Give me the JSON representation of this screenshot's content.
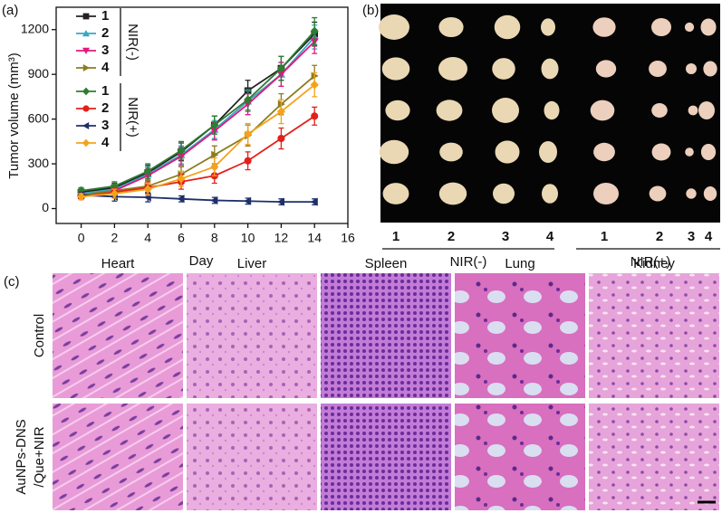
{
  "chart_data": {
    "type": "line",
    "panel_label": "(a)",
    "x_label": "Day",
    "y_label": "Tumor volume (mm³)",
    "x": [
      0,
      2,
      4,
      6,
      8,
      10,
      12,
      14
    ],
    "xlim": [
      -1.5,
      16
    ],
    "xticks": [
      0,
      2,
      4,
      6,
      8,
      10,
      12,
      14,
      16
    ],
    "ylim": [
      -100,
      1350
    ],
    "yticks": [
      0,
      300,
      600,
      900,
      1200
    ],
    "legend_groups": [
      {
        "label": "NIR(-)",
        "series": [
          0,
          1,
          2,
          3
        ]
      },
      {
        "label": "NIR(+)",
        "series": [
          4,
          5,
          6,
          7
        ]
      }
    ],
    "series": [
      {
        "name": "1",
        "color": "#222222",
        "marker": "square",
        "values": [
          110,
          140,
          240,
          380,
          560,
          790,
          940,
          1170
        ],
        "errors": [
          20,
          30,
          50,
          60,
          60,
          70,
          80,
          80
        ]
      },
      {
        "name": "2",
        "color": "#33a9c4",
        "marker": "triangle-up",
        "values": [
          100,
          130,
          230,
          360,
          530,
          720,
          900,
          1150
        ],
        "errors": [
          20,
          30,
          50,
          60,
          60,
          70,
          80,
          80
        ]
      },
      {
        "name": "3",
        "color": "#e0197d",
        "marker": "triangle-down",
        "values": [
          90,
          120,
          220,
          350,
          520,
          700,
          900,
          1120
        ],
        "errors": [
          20,
          30,
          50,
          60,
          60,
          70,
          80,
          80
        ]
      },
      {
        "name": "4",
        "color": "#8b7d1e",
        "marker": "triangle-right",
        "values": [
          90,
          120,
          150,
          230,
          360,
          490,
          700,
          890
        ],
        "errors": [
          20,
          30,
          40,
          50,
          60,
          70,
          70,
          70
        ]
      },
      {
        "name": "1",
        "color": "#2e7d32",
        "marker": "diamond",
        "values": [
          120,
          150,
          250,
          390,
          560,
          730,
          940,
          1190
        ],
        "errors": [
          20,
          30,
          50,
          60,
          60,
          70,
          80,
          90
        ]
      },
      {
        "name": "2",
        "color": "#e3201b",
        "marker": "circle",
        "values": [
          80,
          110,
          140,
          180,
          220,
          320,
          470,
          620
        ],
        "errors": [
          20,
          30,
          40,
          50,
          50,
          60,
          70,
          60
        ]
      },
      {
        "name": "3",
        "color": "#1f2f6b",
        "marker": "triangle-left",
        "values": [
          90,
          80,
          75,
          65,
          55,
          50,
          45,
          45
        ],
        "errors": [
          20,
          30,
          30,
          20,
          20,
          20,
          20,
          20
        ]
      },
      {
        "name": "4",
        "color": "#f5a21b",
        "marker": "diamond",
        "values": [
          80,
          100,
          130,
          200,
          280,
          500,
          650,
          830
        ],
        "errors": [
          20,
          30,
          40,
          50,
          60,
          70,
          80,
          80
        ]
      }
    ]
  },
  "panel_b": {
    "panel_label": "(b)",
    "columns": [
      "1",
      "2",
      "3",
      "4",
      "1",
      "2",
      "3",
      "4"
    ],
    "groups": [
      "NIR(-)",
      "NIR(+)"
    ]
  },
  "panel_c": {
    "panel_label": "(c)",
    "columns": [
      "Heart",
      "Liver",
      "Spleen",
      "Lung",
      "Kidney"
    ],
    "rows": [
      [
        "Control"
      ],
      [
        "AuNPs-DNS",
        "/Que+NIR"
      ]
    ]
  }
}
